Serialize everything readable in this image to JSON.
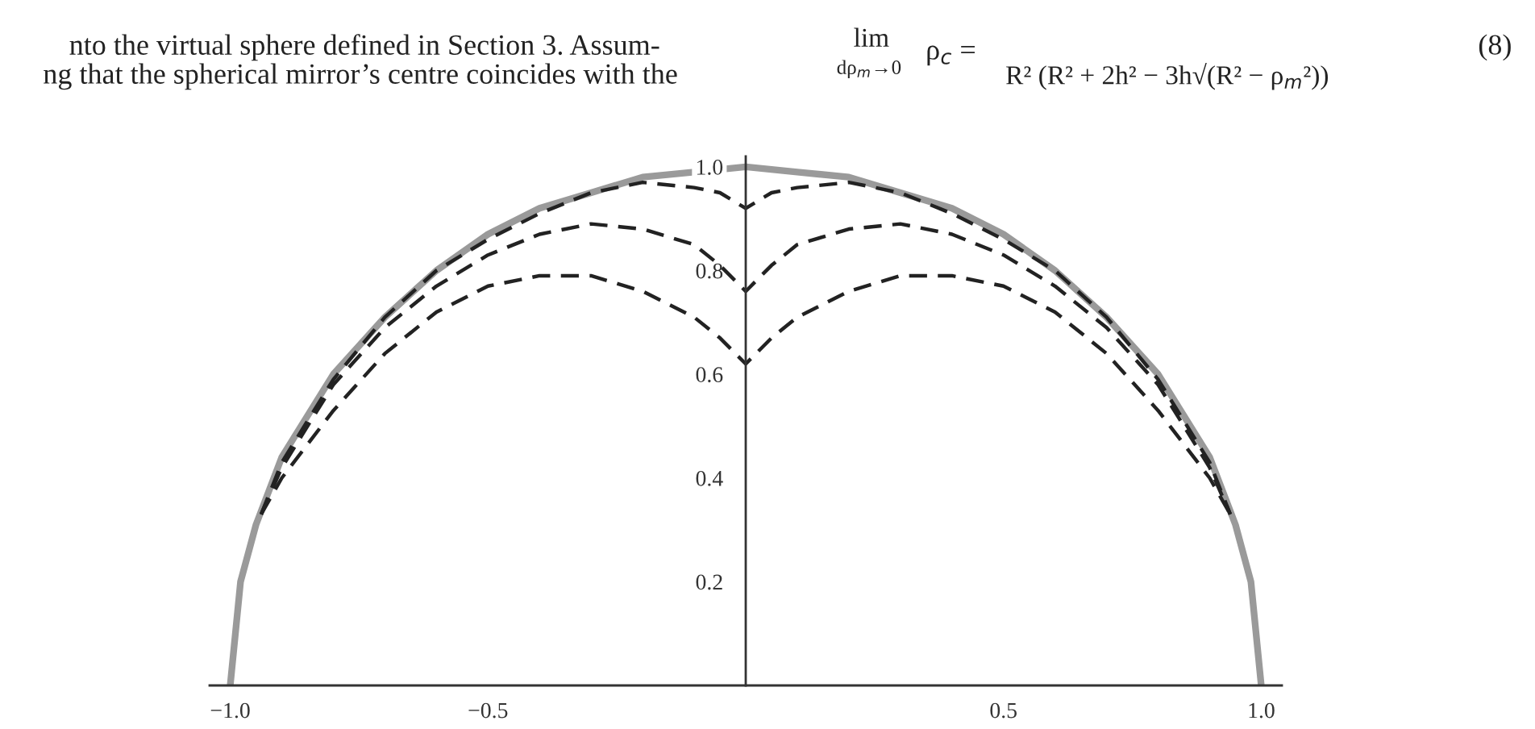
{
  "chart_data": {
    "type": "line",
    "annotations": [
      "nto the virtual sphere defined in Section 3. Assum-",
      "ng that the spherical mirror’s centre coincides with the",
      "lim",
      "dρ$_{m}$→0",
      "ρ$_{c}$ =",
      "R² (R² + 2h² − 3h√(R² − ρ$_{m}$²))",
      "(8)"
    ],
    "series": [
      {
        "color": "#9a9a9a",
        "line_style": "solid",
        "x": [
          -1,
          -0.98,
          -0.95,
          -0.9,
          -0.8,
          -0.7,
          -0.6,
          -0.5,
          -0.4,
          -0.3,
          -0.2,
          -0.1,
          0,
          0.1,
          0.2,
          0.3,
          0.4,
          0.5,
          0.6,
          0.7,
          0.8,
          0.9,
          0.95,
          0.98,
          1
        ],
        "values": [
          0,
          0.2,
          0.31,
          0.44,
          0.6,
          0.71,
          0.8,
          0.87,
          0.92,
          0.95,
          0.98,
          0.99,
          1,
          0.99,
          0.98,
          0.95,
          0.92,
          0.87,
          0.8,
          0.71,
          0.6,
          0.44,
          0.31,
          0.2,
          0
        ]
      },
      {
        "color": "#222222",
        "line_style": "dashed",
        "x": [
          -0.94,
          -0.9,
          -0.8,
          -0.7,
          -0.6,
          -0.5,
          -0.4,
          -0.3,
          -0.2,
          -0.1,
          -0.05,
          0,
          0.05,
          0.1,
          0.2,
          0.3,
          0.4,
          0.5,
          0.6,
          0.7,
          0.8,
          0.9,
          0.94
        ],
        "values": [
          0.33,
          0.43,
          0.59,
          0.71,
          0.8,
          0.86,
          0.91,
          0.95,
          0.97,
          0.96,
          0.95,
          0.92,
          0.95,
          0.96,
          0.97,
          0.95,
          0.91,
          0.86,
          0.8,
          0.71,
          0.59,
          0.43,
          0.33
        ]
      },
      {
        "color": "#222222",
        "line_style": "dashed",
        "x": [
          -0.94,
          -0.9,
          -0.8,
          -0.7,
          -0.6,
          -0.5,
          -0.4,
          -0.3,
          -0.2,
          -0.1,
          -0.05,
          0,
          0.05,
          0.1,
          0.2,
          0.3,
          0.4,
          0.5,
          0.6,
          0.7,
          0.8,
          0.9,
          0.94
        ],
        "values": [
          0.33,
          0.42,
          0.58,
          0.69,
          0.77,
          0.83,
          0.87,
          0.89,
          0.88,
          0.85,
          0.81,
          0.76,
          0.81,
          0.85,
          0.88,
          0.89,
          0.87,
          0.83,
          0.77,
          0.69,
          0.58,
          0.42,
          0.33
        ]
      },
      {
        "color": "#222222",
        "line_style": "dashed",
        "x": [
          -0.94,
          -0.9,
          -0.8,
          -0.7,
          -0.6,
          -0.5,
          -0.4,
          -0.3,
          -0.2,
          -0.1,
          -0.05,
          0,
          0.05,
          0.1,
          0.2,
          0.3,
          0.4,
          0.5,
          0.6,
          0.7,
          0.8,
          0.9,
          0.94
        ],
        "values": [
          0.33,
          0.4,
          0.53,
          0.64,
          0.72,
          0.77,
          0.79,
          0.79,
          0.76,
          0.71,
          0.67,
          0.62,
          0.67,
          0.71,
          0.76,
          0.79,
          0.79,
          0.77,
          0.72,
          0.64,
          0.53,
          0.4,
          0.33
        ]
      }
    ],
    "xlim": [
      -1.04,
      1.04
    ],
    "ylim": [
      0,
      1.02
    ],
    "xticks": [
      {
        "value": -1.0,
        "label": "−1.0"
      },
      {
        "value": -0.5,
        "label": "−0.5"
      },
      {
        "value": 0.5,
        "label": "0.5"
      },
      {
        "value": 1.0,
        "label": "1.0"
      }
    ],
    "yticks": [
      {
        "value": 0.2,
        "label": "0.2"
      },
      {
        "value": 0.4,
        "label": "0.4"
      },
      {
        "value": 0.6,
        "label": "0.6"
      },
      {
        "value": 0.8,
        "label": "0.8"
      },
      {
        "value": 1.0,
        "label": "1.0"
      }
    ],
    "grid": false,
    "legend": false
  }
}
